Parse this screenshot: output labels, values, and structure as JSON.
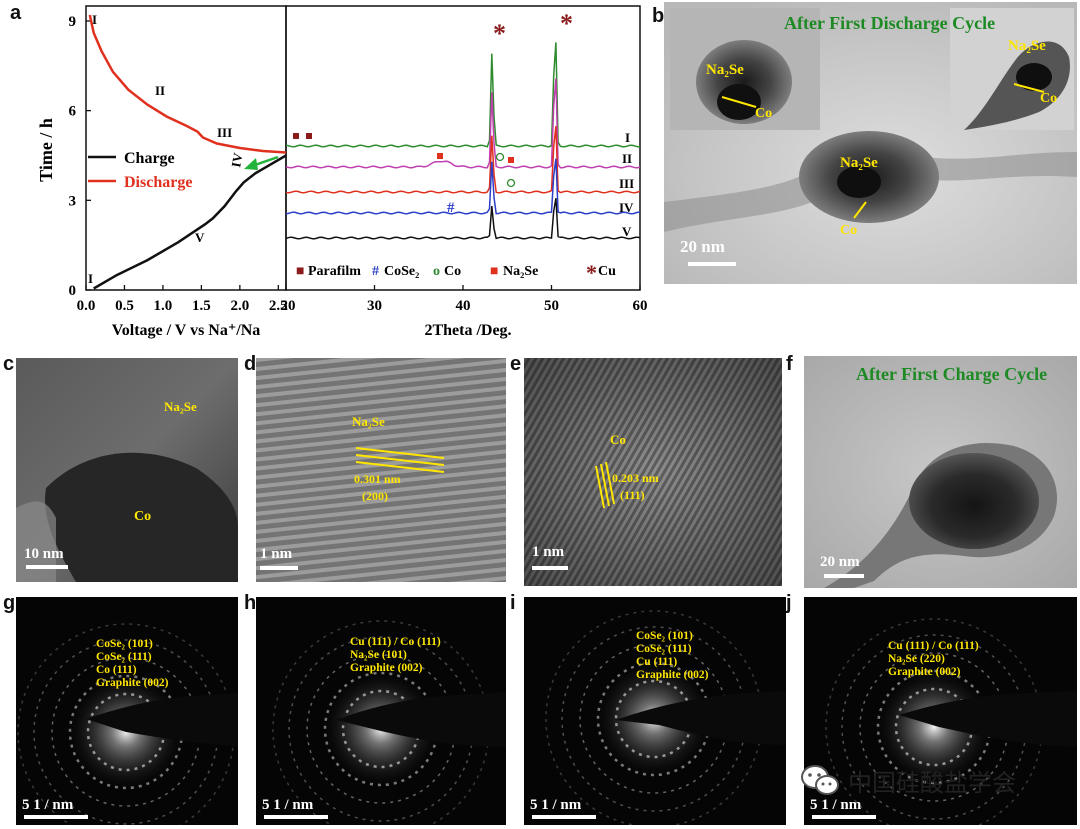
{
  "panels": {
    "a": "a",
    "b": "b",
    "c": "c",
    "d": "d",
    "e": "e",
    "f": "f",
    "g": "g",
    "h": "h",
    "i": "i",
    "j": "j"
  },
  "colors": {
    "charge": "#111111",
    "discharge": "#e0301e",
    "label_yellow": "#ffe600",
    "title_green": "#1d8a24",
    "series": [
      "#2e8b2e",
      "#c040b0",
      "#e0301e",
      "#2b3fc8",
      "#111111"
    ]
  },
  "chart_data": [
    {
      "type": "line",
      "ylabel": "Time / h",
      "xlabel": "Voltage / V vs Na⁺/Na",
      "xlim": [
        0,
        2.6
      ],
      "ylim": [
        0,
        9.5
      ],
      "x_ticks": [
        "0.0",
        "0.5",
        "1.0",
        "1.5",
        "2.0",
        "2.5"
      ],
      "y_ticks": [
        "0",
        "3",
        "6",
        "9"
      ],
      "legend": [
        {
          "label": "Charge",
          "color": "#111111"
        },
        {
          "label": "Discharge",
          "color": "#e0301e"
        }
      ],
      "legend_position": "middle-left",
      "series": [
        {
          "name": "Discharge",
          "x": [
            0.05,
            0.1,
            0.2,
            0.35,
            0.55,
            0.8,
            1.05,
            1.3,
            1.45,
            1.52,
            1.7,
            2.0,
            2.3,
            2.6
          ],
          "y": [
            9.2,
            8.6,
            8.0,
            7.3,
            6.7,
            6.2,
            5.8,
            5.5,
            5.3,
            5.1,
            4.9,
            4.75,
            4.65,
            4.6
          ]
        },
        {
          "name": "Charge",
          "x": [
            0.1,
            0.4,
            0.8,
            1.2,
            1.55,
            1.65,
            1.8,
            1.95,
            2.05,
            2.2,
            2.4,
            2.6
          ],
          "y": [
            0.05,
            0.5,
            1.0,
            1.6,
            2.2,
            2.4,
            2.8,
            3.3,
            3.6,
            3.9,
            4.2,
            4.5
          ]
        }
      ],
      "annotations": [
        "I",
        "II",
        "III",
        "IV",
        "V",
        "I"
      ]
    },
    {
      "type": "line",
      "xlabel": "2Theta /Deg.",
      "xlim": [
        20,
        60
      ],
      "x_ticks": [
        "20",
        "30",
        "40",
        "50",
        "60"
      ],
      "peaks_deg": [
        43.3,
        50.4
      ],
      "series_labels": [
        "I",
        "II",
        "III",
        "IV",
        "V"
      ],
      "legend": [
        "Parafilm",
        "CoSe₂",
        "Co",
        "Na₂Se",
        "Cu"
      ],
      "legend_symbols": [
        "■",
        "#",
        "o",
        "■",
        "*"
      ],
      "legend_position": "bottom"
    }
  ],
  "tem": {
    "b_title": "After First Discharge Cycle",
    "b_na2se": "Na₂Se",
    "b_co": "Co",
    "b_scale": "20 nm",
    "c_na2se": "Na₂Se",
    "c_co": "Co",
    "c_scale": "10 nm",
    "d_label": "Na₂Se",
    "d_spacing": "0.301 nm",
    "d_plane": "(200)",
    "d_scale": "1 nm",
    "e_label": "Co",
    "e_spacing": "0.203 nm",
    "e_plane": "(111)",
    "e_scale": "1 nm",
    "f_title": "After First Charge Cycle",
    "f_scale": "20 nm"
  },
  "saed": {
    "g": [
      "CoSe₂ (101)",
      "CoSe₂ (111)",
      "Co (111)",
      "Graphite (002)"
    ],
    "h": [
      "Cu (111) / Co (111)",
      "Na₂Se (101)",
      "Graphite (002)"
    ],
    "i": [
      "CoSe₂ (101)",
      "CoSe₂ (111)",
      "Cu (111)",
      "Graphite (002)"
    ],
    "j": [
      "Cu (111) / Co (111)",
      "Na₂Se (220)",
      "Graphite (002)"
    ],
    "scale": "5 1 / nm"
  },
  "watermark": {
    "text": "中国硅酸盐学会",
    "icon": "wechat-icon"
  }
}
